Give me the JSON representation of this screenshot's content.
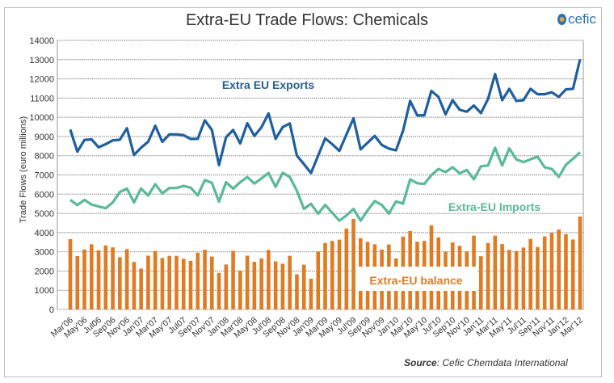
{
  "chart_data": {
    "type": "bar+line",
    "title": "Extra-EU Trade Flows: Chemicals",
    "ylabel": "Trade Flows  (euro millions)",
    "xlabel": "",
    "ylim": [
      0,
      14000
    ],
    "yticks": [
      0,
      1000,
      2000,
      3000,
      4000,
      5000,
      6000,
      7000,
      8000,
      9000,
      10000,
      11000,
      12000,
      13000,
      14000
    ],
    "grid": true,
    "x_tick_labels": [
      "Mar'06",
      "May'06",
      "Jul06",
      "Sep'06",
      "Nov'06",
      "Jan'07",
      "Mar'07",
      "May'07",
      "Jul07",
      "Sep'07",
      "Nov'07",
      "Jan'08",
      "Mar'08",
      "May'08",
      "Jul'08",
      "Sep'08",
      "Nov'08",
      "Jan'09",
      "Mar'09",
      "May'09",
      "Jul'09",
      "Sep'09",
      "Nov'09",
      "Jan'10",
      "Mar'10",
      "May'10",
      "Jul'10",
      "Sep'10",
      "Nov'10",
      "Jan'11",
      "Mar'11",
      "May'11",
      "Jul'11",
      "Sep'11",
      "Nov'11",
      "Jan'12",
      "Mar'12"
    ],
    "x_range": [
      "Mar'06",
      "Mar'12"
    ],
    "series": [
      {
        "name": "Extra EU Exports",
        "type": "line",
        "color": "#1f5fa0",
        "values": [
          9360,
          8210,
          8820,
          8850,
          8440,
          8600,
          8800,
          8830,
          9430,
          8040,
          8420,
          8730,
          9560,
          8720,
          9110,
          9110,
          9070,
          8870,
          8880,
          9840,
          9340,
          7510,
          8960,
          9340,
          8640,
          9690,
          9030,
          9480,
          10200,
          8880,
          9490,
          9680,
          8010,
          7560,
          7100,
          8000,
          8900,
          8600,
          8250,
          9100,
          9940,
          8330,
          8680,
          9030,
          8560,
          8370,
          8280,
          9300,
          10850,
          10100,
          10100,
          11370,
          11060,
          10150,
          10890,
          10390,
          10290,
          10610,
          10220,
          10950,
          12250,
          10890,
          11480,
          10850,
          10890,
          11480,
          11200,
          11200,
          11300,
          11060,
          11450,
          11480,
          13020
        ]
      },
      {
        "name": "Extra-EU Imports",
        "type": "line",
        "color": "#5ab99a",
        "values": [
          5700,
          5430,
          5700,
          5460,
          5360,
          5270,
          5570,
          6110,
          6290,
          5570,
          6290,
          5930,
          6520,
          6040,
          6320,
          6320,
          6430,
          6340,
          5930,
          6730,
          6590,
          5610,
          6620,
          6290,
          6620,
          6890,
          6550,
          6820,
          7100,
          6380,
          7110,
          6890,
          6180,
          5230,
          5500,
          4980,
          5440,
          5030,
          4620,
          4890,
          5230,
          4620,
          5160,
          5640,
          5440,
          4990,
          5620,
          5510,
          6770,
          6570,
          6530,
          6990,
          7310,
          7150,
          7400,
          7080,
          7260,
          6770,
          7450,
          7490,
          8410,
          7490,
          8380,
          7810,
          7670,
          7810,
          7950,
          7400,
          7310,
          6900,
          7530,
          7840,
          8180
        ]
      },
      {
        "name": "Extra-EU balance",
        "type": "bar",
        "color": "#e07b22",
        "values": [
          3660,
          2780,
          3120,
          3390,
          3080,
          3330,
          3230,
          2720,
          3140,
          2470,
          2130,
          2800,
          3040,
          2680,
          2790,
          2790,
          2640,
          2530,
          2950,
          3110,
          2750,
          1900,
          2340,
          3050,
          2020,
          2800,
          2480,
          2660,
          3100,
          2500,
          2380,
          2790,
          1830,
          2330,
          1600,
          3020,
          3460,
          3570,
          3630,
          4210,
          4710,
          3710,
          3520,
          3390,
          3120,
          3380,
          2660,
          3790,
          4080,
          3530,
          3570,
          4380,
          3750,
          3000,
          3490,
          3310,
          3030,
          3840,
          2770,
          3460,
          3840,
          3400,
          3100,
          3040,
          3220,
          3670,
          3250,
          3800,
          3990,
          4160,
          3920,
          3640,
          4840
        ]
      }
    ]
  },
  "logo_text": "cefic",
  "source": {
    "label": "Source",
    "text": ": Cefic Chemdata International"
  }
}
